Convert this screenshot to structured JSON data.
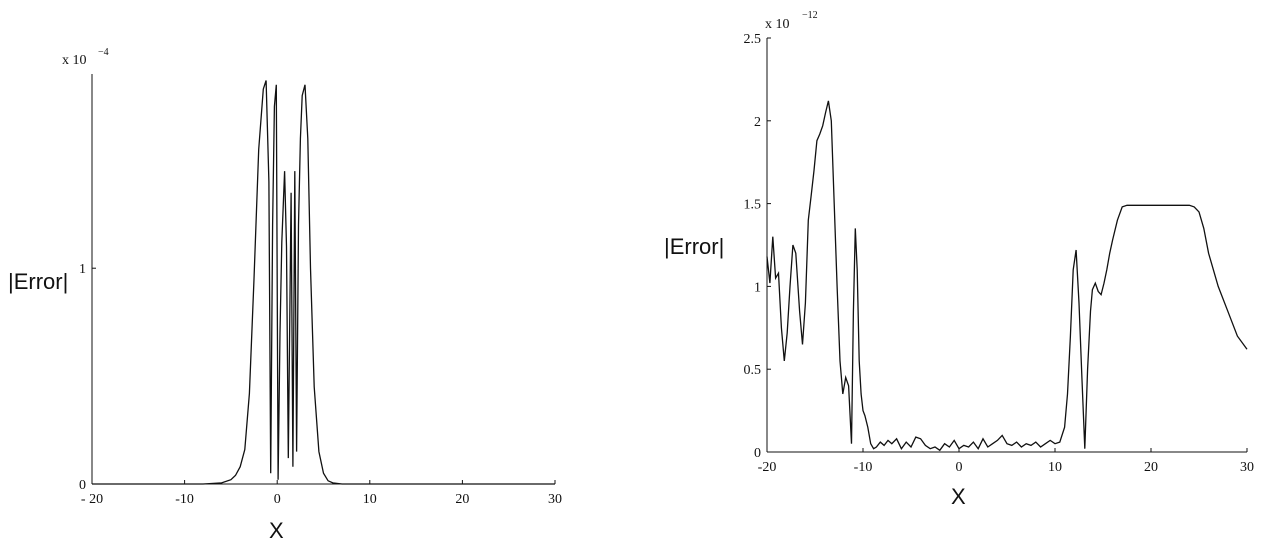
{
  "chart_data": [
    {
      "type": "line",
      "xlabel": "X",
      "ylabel": "|Error|",
      "scale_label": "x 10",
      "scale_exponent": "−4",
      "xlim": [
        -20,
        30
      ],
      "ylim": [
        0,
        1.9
      ],
      "x_ticks": [
        -20,
        -10,
        0,
        10,
        20,
        30
      ],
      "x_tick_labels": [
        "- 20",
        "-10",
        "0",
        "10",
        "20",
        "30"
      ],
      "y_ticks": [
        0,
        1
      ],
      "y_tick_labels": [
        "0",
        "1"
      ],
      "series": [
        {
          "x": [
            -20,
            -8,
            -6,
            -5,
            -4.5,
            -4,
            -3.5,
            -3,
            -2.5,
            -2,
            -1.5,
            -1.2,
            -0.9,
            -0.7,
            -0.5,
            -0.3,
            -0.1,
            0.1,
            0.3,
            0.5,
            0.8,
            1.0,
            1.2,
            1.5,
            1.7,
            1.9,
            2.1,
            2.3,
            2.5,
            2.7,
            3.0,
            3.3,
            3.6,
            4.0,
            4.5,
            5,
            5.5,
            6,
            7,
            10,
            30
          ],
          "y": [
            0,
            0,
            0.005,
            0.02,
            0.04,
            0.08,
            0.16,
            0.42,
            0.95,
            1.55,
            1.83,
            1.87,
            1.4,
            0.05,
            1.2,
            1.75,
            1.85,
            0.02,
            0.7,
            1.12,
            1.45,
            1.1,
            0.12,
            1.35,
            0.08,
            1.45,
            0.15,
            1.2,
            1.6,
            1.8,
            1.85,
            1.6,
            1.0,
            0.45,
            0.15,
            0.05,
            0.015,
            0.005,
            0,
            0,
            0
          ]
        }
      ]
    },
    {
      "type": "line",
      "xlabel": "X",
      "ylabel": "|Error|",
      "scale_label": "x 10",
      "scale_exponent": "−12",
      "xlim": [
        -20,
        30
      ],
      "ylim": [
        0,
        2.5
      ],
      "x_ticks": [
        -20,
        -10,
        0,
        10,
        20,
        30
      ],
      "x_tick_labels": [
        "-20",
        "-10",
        "0",
        "10",
        "20",
        "30"
      ],
      "y_ticks": [
        0,
        0.5,
        1,
        1.5,
        2,
        2.5
      ],
      "y_tick_labels": [
        "0",
        "0.5",
        "1",
        "1.5",
        "2",
        "2.5"
      ],
      "series": [
        {
          "x": [
            -20,
            -19.7,
            -19.4,
            -19.1,
            -18.8,
            -18.5,
            -18.2,
            -17.9,
            -17.6,
            -17.3,
            -17.0,
            -16.6,
            -16.3,
            -16.0,
            -15.7,
            -15.4,
            -15.1,
            -14.8,
            -14.5,
            -14.2,
            -13.9,
            -13.6,
            -13.3,
            -13.0,
            -12.7,
            -12.4,
            -12.1,
            -11.8,
            -11.5,
            -11.2,
            -11.0,
            -10.8,
            -10.6,
            -10.4,
            -10.2,
            -10.0,
            -9.8,
            -9.5,
            -9.2,
            -8.9,
            -8.6,
            -8.2,
            -7.8,
            -7.4,
            -7.0,
            -6.5,
            -6.0,
            -5.5,
            -5.0,
            -4.5,
            -4.0,
            -3.5,
            -3.0,
            -2.5,
            -2.0,
            -1.5,
            -1.0,
            -0.5,
            0.0,
            0.5,
            1.0,
            1.5,
            2.0,
            2.5,
            3.0,
            3.5,
            4.0,
            4.5,
            5.0,
            5.5,
            6.0,
            6.5,
            7.0,
            7.5,
            8.0,
            8.5,
            9.0,
            9.5,
            10.0,
            10.5,
            11.0,
            11.3,
            11.6,
            11.9,
            12.2,
            12.5,
            12.8,
            13.1,
            13.4,
            13.7,
            13.9,
            14.2,
            14.5,
            14.8,
            15.1,
            15.4,
            15.7,
            16.0,
            16.5,
            17.0,
            17.5,
            18.0,
            18.5,
            19.0,
            19.5,
            20.0,
            21.0,
            22.0,
            23.0,
            24.0,
            24.5,
            25.0,
            25.5,
            26.0,
            27.0,
            28.0,
            29.0,
            30.0
          ],
          "y": [
            1.18,
            1.02,
            1.3,
            1.05,
            1.08,
            0.75,
            0.55,
            0.72,
            1.0,
            1.25,
            1.2,
            0.85,
            0.65,
            0.9,
            1.4,
            1.55,
            1.7,
            1.88,
            1.92,
            1.97,
            2.05,
            2.12,
            2.0,
            1.5,
            1.0,
            0.55,
            0.35,
            0.45,
            0.4,
            0.05,
            0.85,
            1.35,
            1.1,
            0.55,
            0.35,
            0.25,
            0.22,
            0.15,
            0.05,
            0.02,
            0.03,
            0.06,
            0.04,
            0.07,
            0.05,
            0.08,
            0.02,
            0.06,
            0.03,
            0.09,
            0.08,
            0.04,
            0.02,
            0.03,
            0.01,
            0.05,
            0.03,
            0.07,
            0.02,
            0.04,
            0.03,
            0.06,
            0.02,
            0.08,
            0.03,
            0.05,
            0.07,
            0.1,
            0.05,
            0.04,
            0.06,
            0.03,
            0.05,
            0.04,
            0.06,
            0.03,
            0.05,
            0.07,
            0.05,
            0.06,
            0.15,
            0.35,
            0.7,
            1.1,
            1.22,
            0.9,
            0.45,
            0.02,
            0.5,
            0.85,
            0.98,
            1.02,
            0.97,
            0.95,
            1.02,
            1.1,
            1.2,
            1.28,
            1.4,
            1.48,
            1.49,
            1.49,
            1.49,
            1.49,
            1.49,
            1.49,
            1.49,
            1.49,
            1.49,
            1.49,
            1.48,
            1.45,
            1.35,
            1.2,
            1.0,
            0.85,
            0.7,
            0.62
          ]
        }
      ]
    }
  ]
}
